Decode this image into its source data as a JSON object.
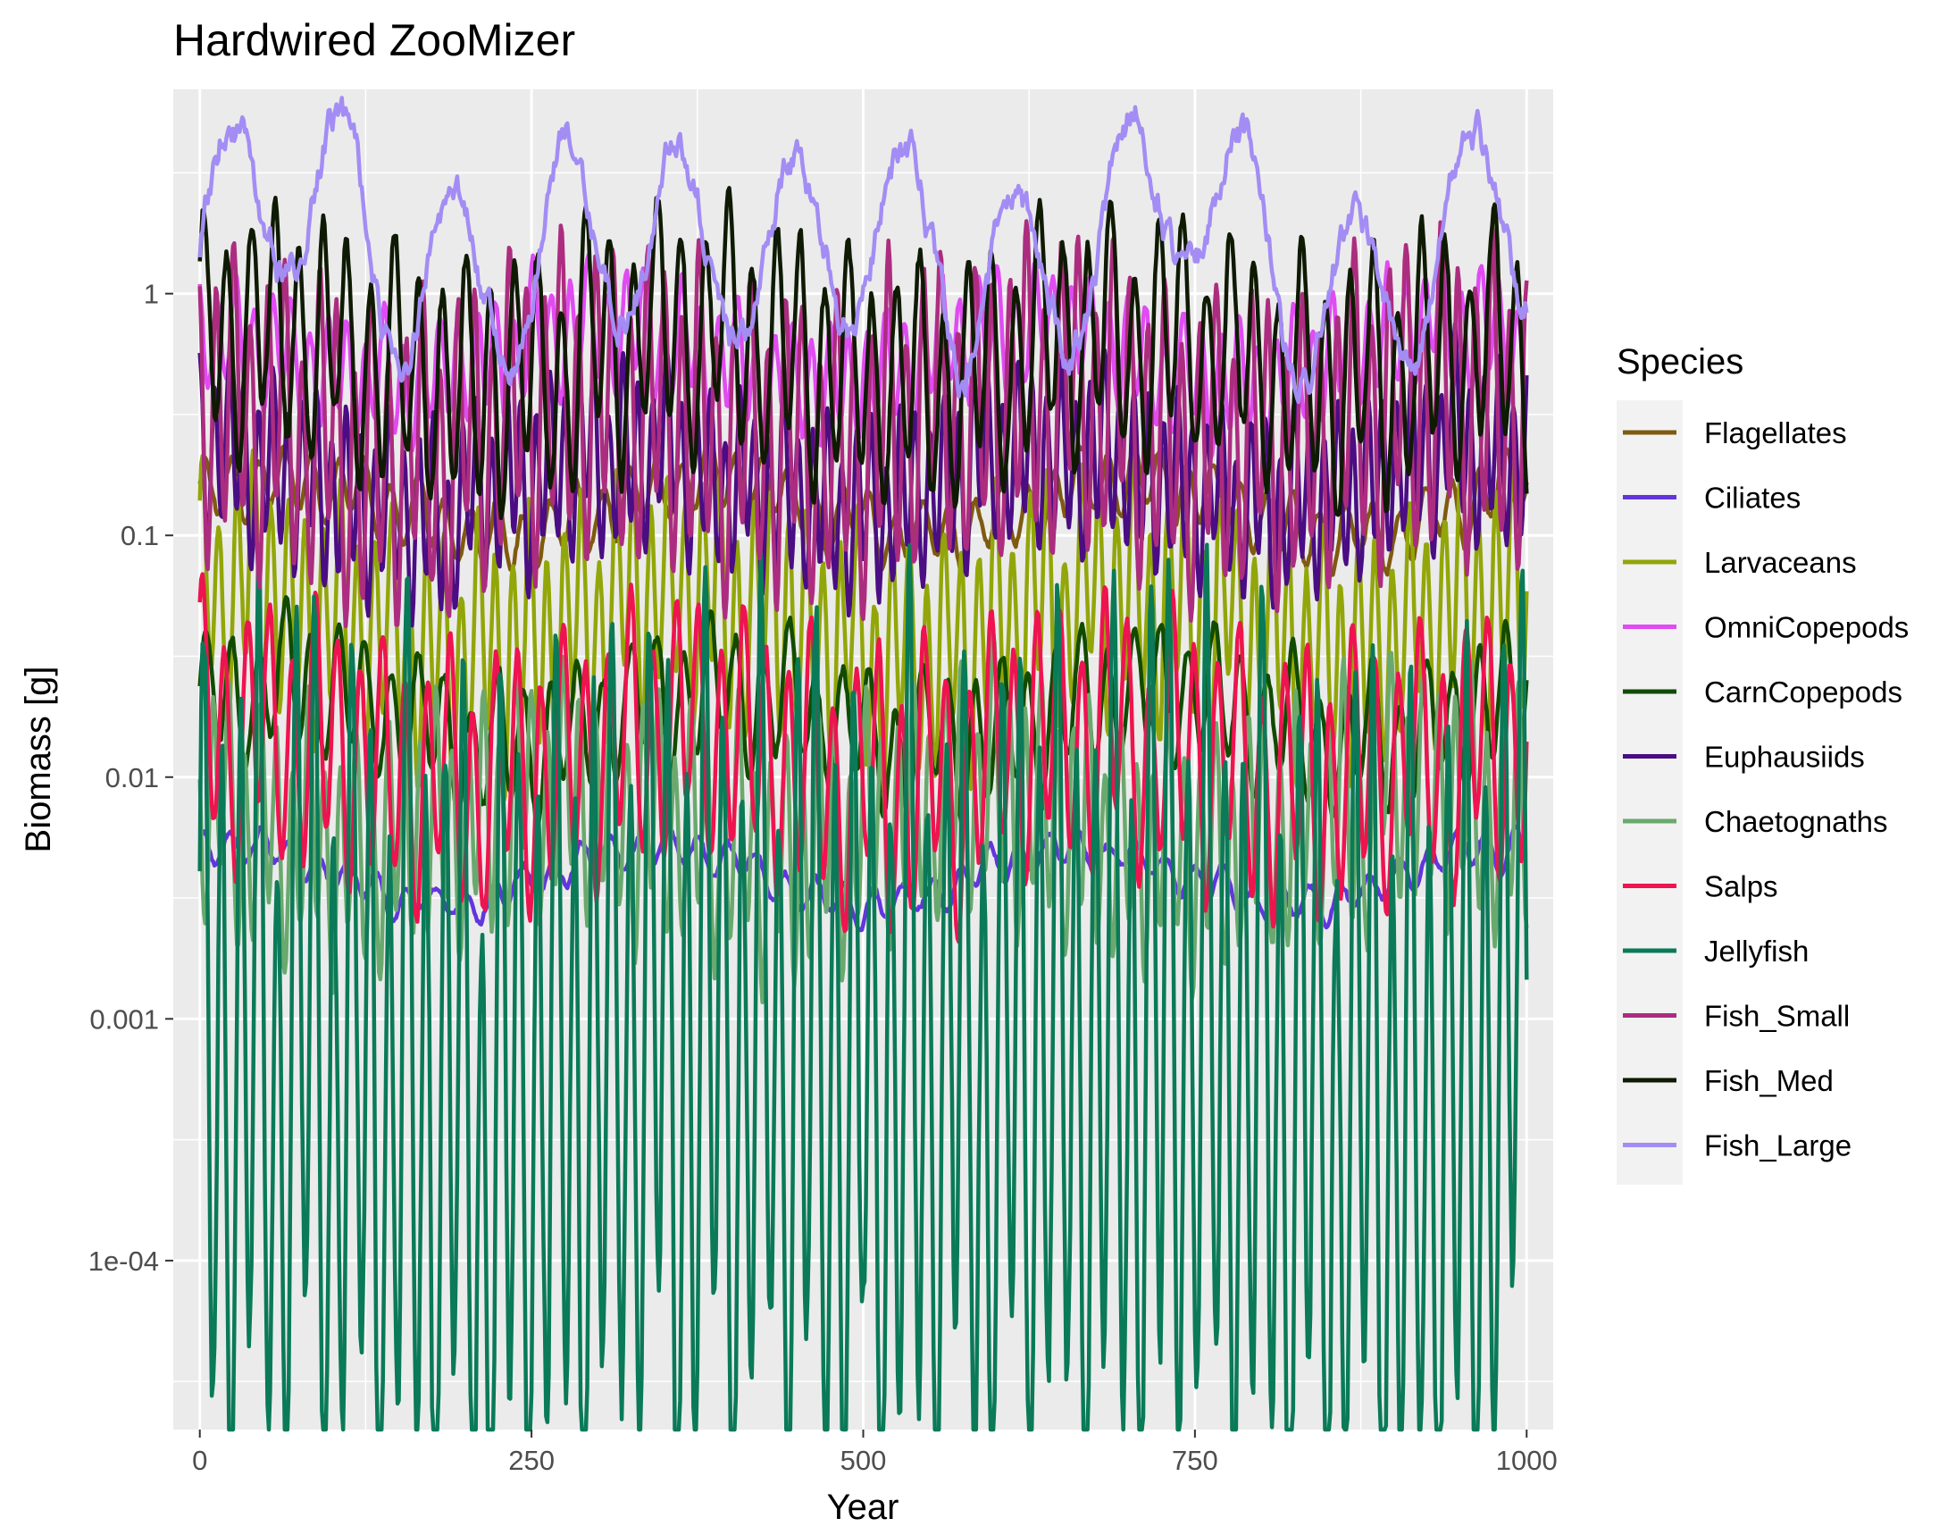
{
  "chart_data": {
    "type": "line",
    "title": "Hardwired ZooMizer",
    "xlabel": "Year",
    "ylabel": "Biomass [g]",
    "x_scale": "linear",
    "y_scale": "log10",
    "xlim": [
      -20,
      1020
    ],
    "ylim": [
      2e-05,
      7
    ],
    "x_ticks": [
      0,
      250,
      500,
      750,
      1000
    ],
    "x_tick_labels": [
      "0",
      "250",
      "500",
      "750",
      "1000"
    ],
    "y_ticks": [
      0.0001,
      0.001,
      0.01,
      0.1,
      1
    ],
    "y_tick_labels": [
      "1e-04",
      "0.001",
      "0.01",
      "0.1",
      "1"
    ],
    "grid": true,
    "legend_title": "Species",
    "legend_position": "right",
    "panel_background": "#ebebeb",
    "grid_color": "#ffffff",
    "x_start": 0,
    "x_end": 1000,
    "series": [
      {
        "name": "Flagellates",
        "color": "#7f5a10",
        "center": 0.13,
        "amplitude": 0.17,
        "period": 20,
        "phase": 0.3,
        "noise": 0.04
      },
      {
        "name": "Ciliates",
        "color": "#6236dc",
        "center": 0.0039,
        "amplitude": 0.09,
        "period": 22,
        "phase": 1.1,
        "noise": 0.03
      },
      {
        "name": "Larvaceans",
        "color": "#92a609",
        "center": 0.043,
        "amplitude": 0.6,
        "period": 13,
        "phase": 0.7,
        "noise": 0.1
      },
      {
        "name": "OmniCopepods",
        "color": "#e04cf2",
        "center": 0.55,
        "amplitude": 0.3,
        "period": 14,
        "phase": 2.0,
        "noise": 0.06
      },
      {
        "name": "CarnCopepods",
        "color": "#114b00",
        "center": 0.018,
        "amplitude": 0.35,
        "period": 20,
        "phase": 0.2,
        "noise": 0.06
      },
      {
        "name": "Euphausiids",
        "color": "#4a0d83",
        "center": 0.17,
        "amplitude": 0.45,
        "period": 11,
        "phase": 1.5,
        "noise": 0.08
      },
      {
        "name": "Chaetognaths",
        "color": "#6aa96e",
        "center": 0.0065,
        "amplitude": 0.6,
        "period": 12,
        "phase": 2.6,
        "noise": 0.1
      },
      {
        "name": "Salps",
        "color": "#ee1450",
        "center": 0.012,
        "amplitude": 0.65,
        "period": 17,
        "phase": 0.9,
        "noise": 0.08
      },
      {
        "name": "Jellyfish",
        "color": "#0a7a58",
        "center": 0.0006,
        "amplitude": 2.2,
        "period": 14,
        "phase": 0.4,
        "noise": 0.35
      },
      {
        "name": "Fish_Small",
        "color": "#ac2d7f",
        "center": 0.3,
        "amplitude": 0.75,
        "period": 13,
        "phase": 1.9,
        "noise": 0.1
      },
      {
        "name": "Fish_Med",
        "color": "#0e1a02",
        "center": 0.55,
        "amplitude": 0.6,
        "period": 18,
        "phase": 0.6,
        "noise": 0.1
      },
      {
        "name": "Fish_Large",
        "color": "#a38df4",
        "center": 1.55,
        "amplitude": 0.55,
        "period": 85,
        "phase": 0.0,
        "noise": 0.12
      }
    ]
  }
}
